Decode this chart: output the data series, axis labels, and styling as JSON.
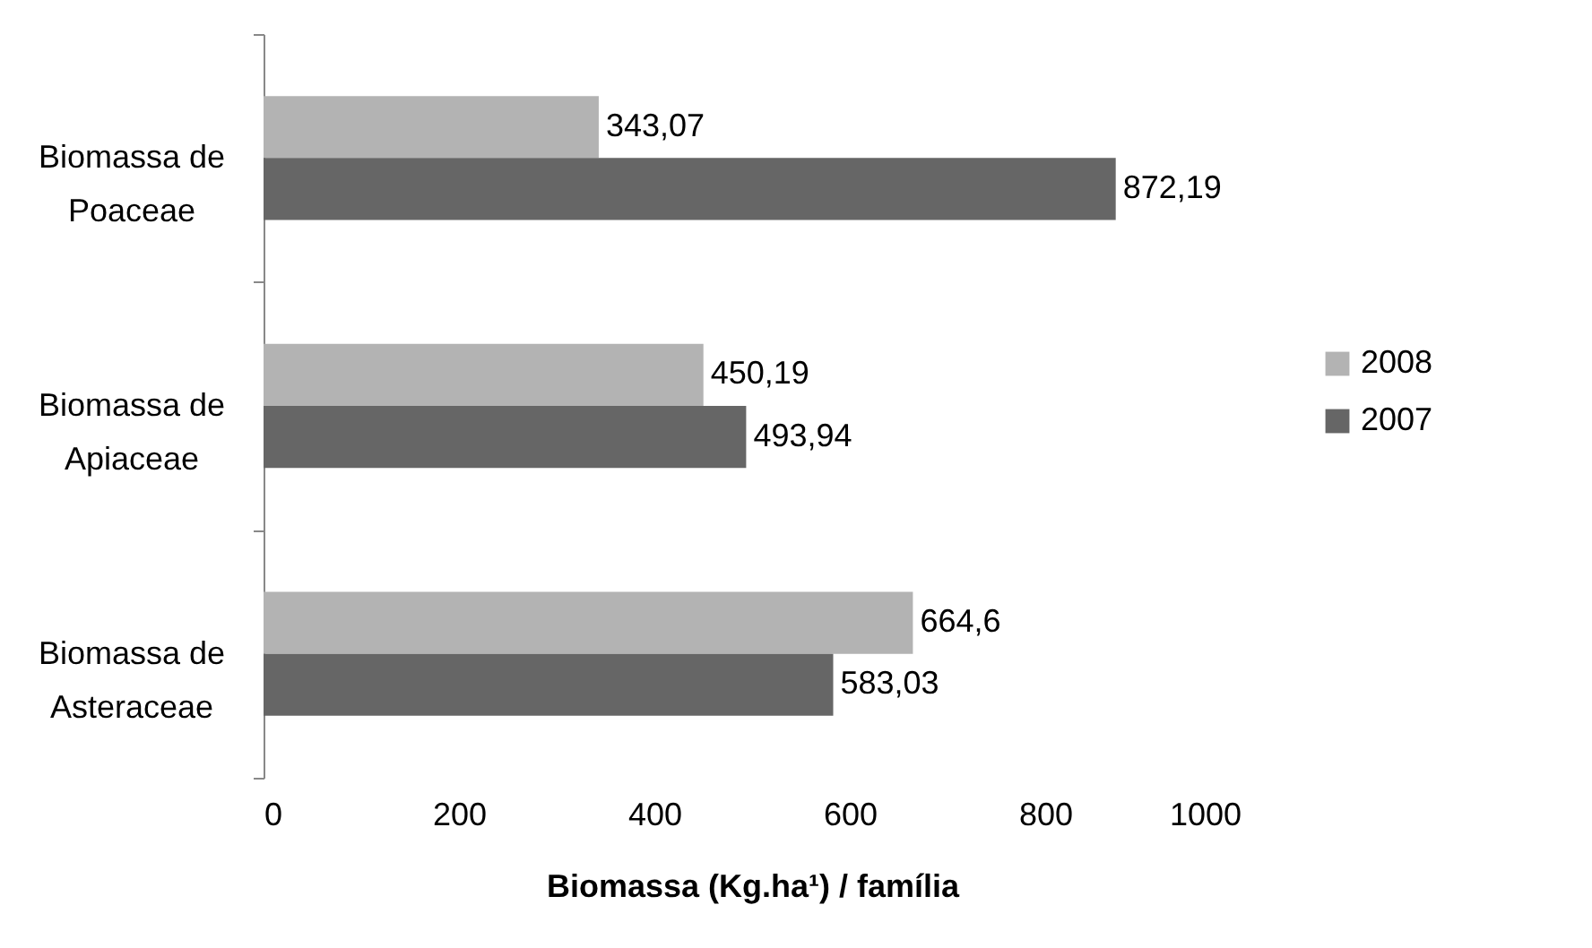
{
  "chart_data": {
    "type": "bar",
    "orientation": "horizontal",
    "xlabel": "Biomassa (Kg.ha¹) / família",
    "categories": [
      "Biomassa de Poaceae",
      "Biomassa de Apiaceae",
      "Biomassa de Asteraceae"
    ],
    "series": [
      {
        "name": "2008",
        "color": "#b3b3b3",
        "values": [
          343.07,
          450.19,
          664.6
        ],
        "value_labels": [
          "343,07",
          "450,19",
          "664,6"
        ]
      },
      {
        "name": "2007",
        "color": "#666666",
        "values": [
          872.19,
          493.94,
          583.03
        ],
        "value_labels": [
          "872,19",
          "493,94",
          "583,03"
        ]
      }
    ],
    "xlim": [
      0,
      1000
    ],
    "xticks": [
      0,
      200,
      400,
      600,
      800,
      1000
    ],
    "grid": false,
    "legend": "right"
  }
}
